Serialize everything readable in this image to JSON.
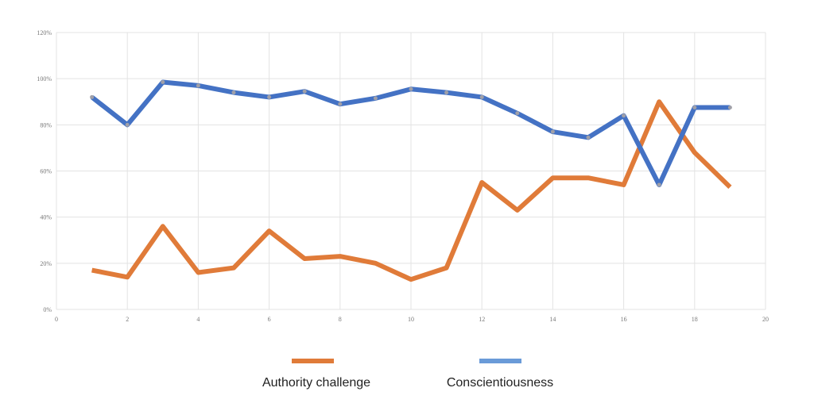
{
  "chart_data": {
    "type": "line",
    "title": "",
    "xlabel": "",
    "ylabel": "",
    "xlim": [
      0,
      20
    ],
    "ylim": [
      0,
      120
    ],
    "x_ticks": [
      "0",
      "2",
      "4",
      "6",
      "8",
      "10",
      "12",
      "14",
      "16",
      "18",
      "20"
    ],
    "y_ticks": [
      "0%",
      "20%",
      "40%",
      "60%",
      "80%",
      "100%",
      "120%"
    ],
    "grid": true,
    "legend_position": "bottom",
    "x": [
      1,
      2,
      3,
      4,
      5,
      6,
      7,
      8,
      9,
      10,
      11,
      12,
      13,
      14,
      15,
      16,
      17,
      18,
      19
    ],
    "series": [
      {
        "name": "Authority challenge",
        "color": "#e07b39",
        "values": [
          17,
          14,
          36,
          16,
          18,
          34,
          22,
          23,
          20,
          13,
          18,
          55,
          43,
          57,
          57,
          54,
          90,
          68,
          53
        ]
      },
      {
        "name": "Conscientiousness",
        "color": "#4472c4",
        "legend_color": "#6a9bd8",
        "values": [
          92,
          80,
          98.5,
          97,
          94,
          92,
          94.5,
          89,
          91.5,
          95.5,
          94,
          92,
          85,
          77,
          74.5,
          84,
          54,
          87.5,
          87.5
        ]
      }
    ]
  }
}
